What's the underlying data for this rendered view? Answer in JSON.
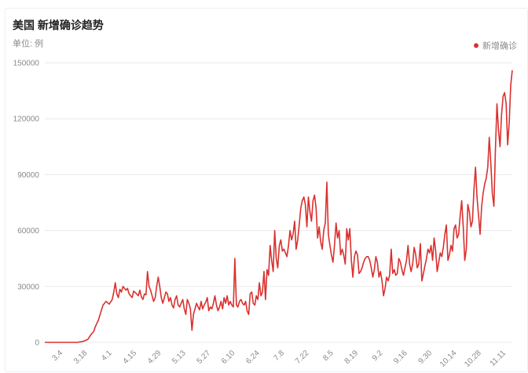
{
  "colors": {
    "series": "#d9312f",
    "text": "#8a8a8a",
    "grid": "#e9e9e9"
  },
  "chart_data": {
    "type": "line",
    "title": "美国 新增确诊趋势",
    "subtitle": "单位: 例",
    "legend": "top-right",
    "grid": true,
    "ylim": [
      0,
      150000
    ],
    "yticks": [
      0,
      30000,
      60000,
      90000,
      120000,
      150000
    ],
    "xticks": [
      "3.4",
      "3.18",
      "4.1",
      "4.15",
      "4.29",
      "5.13",
      "5.27",
      "6.10",
      "6.24",
      "7.8",
      "7.22",
      "8.5",
      "8.19",
      "9.2",
      "9.16",
      "9.30",
      "10.14",
      "10.28",
      "11.11"
    ],
    "series": [
      {
        "name": "新增确诊",
        "values": [
          [
            0,
            0
          ],
          [
            7,
            0
          ],
          [
            14,
            0
          ],
          [
            21,
            0
          ],
          [
            25,
            500
          ],
          [
            28,
            1500
          ],
          [
            30,
            4000
          ],
          [
            32,
            6000
          ],
          [
            33,
            8500
          ],
          [
            35,
            12000
          ],
          [
            37,
            17500
          ],
          [
            38,
            20000
          ],
          [
            40,
            22000
          ],
          [
            42,
            20500
          ],
          [
            44,
            23000
          ],
          [
            45,
            27000
          ],
          [
            46,
            32000
          ],
          [
            47,
            26000
          ],
          [
            48,
            24000
          ],
          [
            49,
            28500
          ],
          [
            50,
            27000
          ],
          [
            51,
            30000
          ],
          [
            53,
            28000
          ],
          [
            54,
            29000
          ],
          [
            55,
            26000
          ],
          [
            57,
            24000
          ],
          [
            58,
            27500
          ],
          [
            60,
            26000
          ],
          [
            61,
            25000
          ],
          [
            62,
            28000
          ],
          [
            63,
            24500
          ],
          [
            64,
            23000
          ],
          [
            65,
            26000
          ],
          [
            66,
            25500
          ],
          [
            67,
            38000
          ],
          [
            68,
            30000
          ],
          [
            69,
            28000
          ],
          [
            70,
            25000
          ],
          [
            71,
            22000
          ],
          [
            72,
            24000
          ],
          [
            73,
            30000
          ],
          [
            74,
            35000
          ],
          [
            75,
            30000
          ],
          [
            76,
            24000
          ],
          [
            77,
            21000
          ],
          [
            78,
            24000
          ],
          [
            79,
            27000
          ],
          [
            80,
            26000
          ],
          [
            81,
            22000
          ],
          [
            82,
            24000
          ],
          [
            83,
            20000
          ],
          [
            84,
            18500
          ],
          [
            85,
            23000
          ],
          [
            86,
            25000
          ],
          [
            87,
            20000
          ],
          [
            88,
            19000
          ],
          [
            89,
            21000
          ],
          [
            90,
            23000
          ],
          [
            91,
            18000
          ],
          [
            92,
            15000
          ],
          [
            93,
            23000
          ],
          [
            94,
            21000
          ],
          [
            95,
            18000
          ],
          [
            96,
            6500
          ],
          [
            97,
            15000
          ],
          [
            98,
            18000
          ],
          [
            99,
            21000
          ],
          [
            100,
            19000
          ],
          [
            101,
            17500
          ],
          [
            102,
            22000
          ],
          [
            103,
            18000
          ],
          [
            104,
            20000
          ],
          [
            105,
            21500
          ],
          [
            106,
            24000
          ],
          [
            107,
            17000
          ],
          [
            108,
            19000
          ],
          [
            109,
            18000
          ],
          [
            110,
            21000
          ],
          [
            111,
            25000
          ],
          [
            112,
            20000
          ],
          [
            113,
            17000
          ],
          [
            114,
            19000
          ],
          [
            115,
            22000
          ],
          [
            116,
            18000
          ],
          [
            117,
            24000
          ],
          [
            118,
            21000
          ],
          [
            119,
            25000
          ],
          [
            120,
            20000
          ],
          [
            121,
            22000
          ],
          [
            122,
            20000
          ],
          [
            123,
            19000
          ],
          [
            124,
            45000
          ],
          [
            125,
            20000
          ],
          [
            126,
            19000
          ],
          [
            127,
            22000
          ],
          [
            128,
            23000
          ],
          [
            129,
            21000
          ],
          [
            130,
            20000
          ],
          [
            131,
            22000
          ],
          [
            132,
            17000
          ],
          [
            133,
            15000
          ],
          [
            134,
            26000
          ],
          [
            135,
            27000
          ],
          [
            136,
            21000
          ],
          [
            137,
            20000
          ],
          [
            138,
            25000
          ],
          [
            139,
            23000
          ],
          [
            140,
            32000
          ],
          [
            141,
            25000
          ],
          [
            142,
            27000
          ],
          [
            143,
            38000
          ],
          [
            144,
            23000
          ],
          [
            145,
            39000
          ],
          [
            146,
            36000
          ],
          [
            147,
            52000
          ],
          [
            148,
            44000
          ],
          [
            149,
            38000
          ],
          [
            150,
            60000
          ],
          [
            151,
            45000
          ],
          [
            152,
            40000
          ],
          [
            153,
            52000
          ],
          [
            154,
            55000
          ],
          [
            155,
            49000
          ],
          [
            156,
            50000
          ],
          [
            157,
            48000
          ],
          [
            158,
            46000
          ],
          [
            159,
            52000
          ],
          [
            160,
            60000
          ],
          [
            161,
            55000
          ],
          [
            162,
            58000
          ],
          [
            163,
            65000
          ],
          [
            164,
            50000
          ],
          [
            165,
            55000
          ],
          [
            166,
            63000
          ],
          [
            167,
            72000
          ],
          [
            168,
            76000
          ],
          [
            169,
            78000
          ],
          [
            170,
            74000
          ],
          [
            171,
            62000
          ],
          [
            172,
            78000
          ],
          [
            173,
            70000
          ],
          [
            174,
            65000
          ],
          [
            175,
            76000
          ],
          [
            176,
            79000
          ],
          [
            177,
            72000
          ],
          [
            178,
            56000
          ],
          [
            179,
            62000
          ],
          [
            180,
            54000
          ],
          [
            181,
            50000
          ],
          [
            182,
            60000
          ],
          [
            183,
            64000
          ],
          [
            184,
            86000
          ],
          [
            185,
            58000
          ],
          [
            186,
            52000
          ],
          [
            187,
            47000
          ],
          [
            188,
            43000
          ],
          [
            189,
            52000
          ],
          [
            190,
            64000
          ],
          [
            191,
            56000
          ],
          [
            192,
            60000
          ],
          [
            193,
            47000
          ],
          [
            194,
            50000
          ],
          [
            195,
            47000
          ],
          [
            196,
            42000
          ],
          [
            197,
            61000
          ],
          [
            198,
            55000
          ],
          [
            199,
            61000
          ],
          [
            200,
            44000
          ],
          [
            201,
            35000
          ],
          [
            202,
            46000
          ],
          [
            203,
            49000
          ],
          [
            204,
            47000
          ],
          [
            205,
            37000
          ],
          [
            206,
            38000
          ],
          [
            207,
            40000
          ],
          [
            208,
            43000
          ],
          [
            209,
            45000
          ],
          [
            210,
            46000
          ],
          [
            211,
            46000
          ],
          [
            212,
            44000
          ],
          [
            213,
            40000
          ],
          [
            214,
            35000
          ],
          [
            215,
            39000
          ],
          [
            216,
            46000
          ],
          [
            217,
            43000
          ],
          [
            218,
            35000
          ],
          [
            219,
            38000
          ],
          [
            220,
            33000
          ],
          [
            221,
            25000
          ],
          [
            222,
            29000
          ],
          [
            223,
            35000
          ],
          [
            224,
            33000
          ],
          [
            225,
            36000
          ],
          [
            226,
            50000
          ],
          [
            227,
            37000
          ],
          [
            228,
            39000
          ],
          [
            229,
            36000
          ],
          [
            230,
            37000
          ],
          [
            231,
            45000
          ],
          [
            232,
            43000
          ],
          [
            233,
            39000
          ],
          [
            234,
            36000
          ],
          [
            235,
            40000
          ],
          [
            236,
            44000
          ],
          [
            237,
            52000
          ],
          [
            238,
            42000
          ],
          [
            239,
            38000
          ],
          [
            240,
            42000
          ],
          [
            241,
            51000
          ],
          [
            242,
            47000
          ],
          [
            243,
            40000
          ],
          [
            244,
            42000
          ],
          [
            245,
            53000
          ],
          [
            246,
            33000
          ],
          [
            247,
            37000
          ],
          [
            248,
            41000
          ],
          [
            249,
            45000
          ],
          [
            250,
            50000
          ],
          [
            251,
            48000
          ],
          [
            252,
            52000
          ],
          [
            253,
            44000
          ],
          [
            254,
            56000
          ],
          [
            255,
            49000
          ],
          [
            256,
            38000
          ],
          [
            257,
            43000
          ],
          [
            258,
            48000
          ],
          [
            259,
            46000
          ],
          [
            260,
            51000
          ],
          [
            261,
            58000
          ],
          [
            262,
            63000
          ],
          [
            263,
            44000
          ],
          [
            264,
            47000
          ],
          [
            265,
            52000
          ],
          [
            266,
            49000
          ],
          [
            267,
            61000
          ],
          [
            268,
            63000
          ],
          [
            269,
            56000
          ],
          [
            270,
            58000
          ],
          [
            271,
            68000
          ],
          [
            272,
            76000
          ],
          [
            273,
            62000
          ],
          [
            274,
            44000
          ],
          [
            275,
            50000
          ],
          [
            276,
            74000
          ],
          [
            277,
            70000
          ],
          [
            278,
            62000
          ],
          [
            279,
            65000
          ],
          [
            280,
            82000
          ],
          [
            281,
            94000
          ],
          [
            282,
            78000
          ],
          [
            283,
            68000
          ],
          [
            284,
            58000
          ],
          [
            285,
            73000
          ],
          [
            286,
            80000
          ],
          [
            287,
            85000
          ],
          [
            288,
            88000
          ],
          [
            289,
            94000
          ],
          [
            290,
            110000
          ],
          [
            291,
            96000
          ],
          [
            292,
            80000
          ],
          [
            293,
            73000
          ],
          [
            294,
            103000
          ],
          [
            295,
            128000
          ],
          [
            296,
            114000
          ],
          [
            297,
            105000
          ],
          [
            298,
            122000
          ],
          [
            299,
            132000
          ],
          [
            300,
            134000
          ],
          [
            301,
            128000
          ],
          [
            302,
            106000
          ],
          [
            303,
            118000
          ],
          [
            304,
            138000
          ],
          [
            305,
            146000
          ]
        ]
      }
    ]
  }
}
